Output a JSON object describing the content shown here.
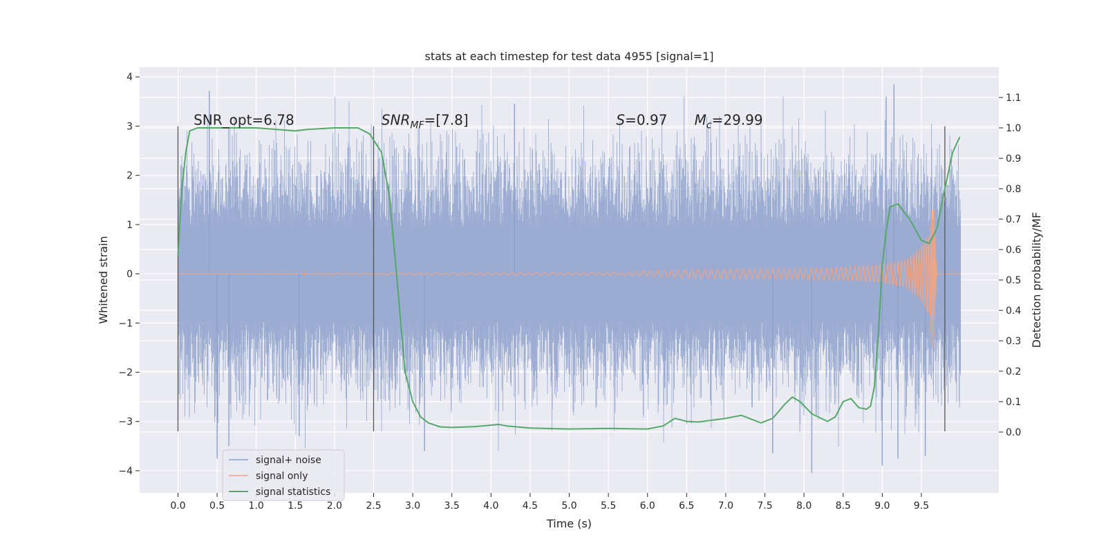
{
  "chart_data": {
    "type": "line",
    "title": "stats at each timestep for test data 4955 [signal=1]",
    "xlabel": "Time (s)",
    "ylabel": "Whitened strain",
    "y2label": "Detection probability/MF",
    "xlim": [
      -0.49,
      10.49
    ],
    "ylim": [
      -4.45,
      4.2
    ],
    "y2lim": [
      -0.2,
      1.2
    ],
    "xticks": [
      0.0,
      0.5,
      1.0,
      1.5,
      2.0,
      2.5,
      3.0,
      3.5,
      4.0,
      4.5,
      5.0,
      5.5,
      6.0,
      6.5,
      7.0,
      7.5,
      8.0,
      8.5,
      9.0,
      9.5
    ],
    "xtick_labels": [
      "0.0",
      "0.5",
      "1.0",
      "1.5",
      "2.0",
      "2.5",
      "3.0",
      "3.5",
      "4.0",
      "4.5",
      "5.0",
      "5.5",
      "6.0",
      "6.5",
      "7.0",
      "7.5",
      "8.0",
      "8.5",
      "9.0",
      "9.5"
    ],
    "yticks": [
      4,
      3,
      2,
      1,
      0,
      -1,
      -2,
      -3,
      -4
    ],
    "ytick_labels": [
      "4",
      "3",
      "2",
      "1",
      "0",
      "−1",
      "−2",
      "−3",
      "−4"
    ],
    "y2ticks": [
      1.1,
      1.0,
      0.9,
      0.8,
      0.7,
      0.6,
      0.5,
      0.4,
      0.3,
      0.2,
      0.1,
      0.0
    ],
    "y2tick_labels": [
      "1.1",
      "1.0",
      "0.9",
      "0.8",
      "0.7",
      "0.6",
      "0.5",
      "0.4",
      "0.3",
      "0.2",
      "0.1",
      "0.0"
    ],
    "grid": true,
    "vlines": [
      {
        "x": 0.0,
        "ymin": -3.2,
        "ymax": 3.0
      },
      {
        "x": 2.5,
        "ymin": -3.2,
        "ymax": 3.0
      },
      {
        "x": 9.8,
        "ymin": -3.2,
        "ymax": 3.0
      }
    ],
    "annotations": [
      {
        "x": 0.2,
        "y": 3.03,
        "parts": [
          {
            "t": "SNR_opt=6.78",
            "s": "n"
          }
        ]
      },
      {
        "x": 2.6,
        "y": 3.03,
        "parts": [
          {
            "t": "SNR",
            "s": "i"
          },
          {
            "t": "MF",
            "s": "isub"
          },
          {
            "t": "=[7.8]",
            "s": "n"
          }
        ]
      },
      {
        "x": 5.6,
        "y": 3.03,
        "parts": [
          {
            "t": "S",
            "s": "i"
          },
          {
            "t": "=0.97",
            "s": "n"
          }
        ]
      },
      {
        "x": 6.6,
        "y": 3.03,
        "parts": [
          {
            "t": "M",
            "s": "i"
          },
          {
            "t": "c",
            "s": "isub"
          },
          {
            "t": "=29.99",
            "s": "n"
          }
        ]
      }
    ],
    "legend": {
      "position": "lower-left",
      "entries": [
        {
          "label": "signal+ noise",
          "color": "#8da0cb"
        },
        {
          "label": "signal only",
          "color": "#f0a585"
        },
        {
          "label": "signal statistics",
          "color": "#55a868"
        }
      ]
    },
    "series": [
      {
        "name": "signal+ noise",
        "color": "#8da0cb",
        "axis": "left",
        "x_range": [
          0.0,
          10.0
        ],
        "typical_amplitude": 1.6,
        "peak_values": [
          {
            "x": 0.4,
            "y": 3.72
          },
          {
            "x": 0.5,
            "y": -3.75
          },
          {
            "x": 0.65,
            "y": -3.5
          },
          {
            "x": 1.55,
            "y": -3.3
          },
          {
            "x": 3.15,
            "y": -3.6
          },
          {
            "x": 4.3,
            "y": 3.45
          },
          {
            "x": 7.6,
            "y": -3.65
          },
          {
            "x": 8.1,
            "y": -4.05
          },
          {
            "x": 9.05,
            "y": 3.6
          },
          {
            "x": 9.0,
            "y": -3.9
          },
          {
            "x": 9.15,
            "y": 3.85
          },
          {
            "x": 9.2,
            "y": -3.75
          },
          {
            "x": 9.55,
            "y": -3.7
          }
        ]
      },
      {
        "name": "signal only",
        "color": "#f0a585",
        "axis": "left",
        "x": [
          0.0,
          5.5,
          6.5,
          7.5,
          8.5,
          9.0,
          9.3,
          9.5,
          9.6,
          9.65,
          9.7,
          9.75,
          10.0
        ],
        "envelope": [
          0.0,
          0.03,
          0.08,
          0.1,
          0.13,
          0.18,
          0.28,
          0.55,
          0.85,
          1.55,
          0.0,
          0.0,
          0.0
        ]
      },
      {
        "name": "signal statistics",
        "color": "#55a868",
        "axis": "right",
        "x": [
          0.0,
          0.05,
          0.1,
          0.15,
          0.25,
          0.5,
          1.0,
          1.5,
          1.65,
          2.0,
          2.3,
          2.45,
          2.6,
          2.7,
          2.8,
          2.9,
          3.0,
          3.1,
          3.2,
          3.35,
          3.5,
          3.8,
          4.1,
          4.2,
          4.5,
          5.0,
          5.5,
          6.0,
          6.2,
          6.35,
          6.5,
          6.65,
          7.0,
          7.2,
          7.45,
          7.6,
          7.75,
          7.85,
          7.95,
          8.1,
          8.3,
          8.4,
          8.5,
          8.6,
          8.7,
          8.8,
          8.85,
          8.9,
          8.95,
          9.0,
          9.05,
          9.1,
          9.2,
          9.35,
          9.5,
          9.6,
          9.7,
          9.8,
          9.9,
          9.99
        ],
        "values": [
          0.58,
          0.8,
          0.92,
          0.99,
          1.0,
          1.0,
          1.0,
          0.99,
          0.995,
          1.0,
          1.0,
          0.98,
          0.92,
          0.78,
          0.5,
          0.2,
          0.1,
          0.05,
          0.03,
          0.017,
          0.015,
          0.018,
          0.025,
          0.02,
          0.013,
          0.01,
          0.012,
          0.01,
          0.02,
          0.045,
          0.035,
          0.033,
          0.045,
          0.055,
          0.03,
          0.045,
          0.09,
          0.115,
          0.1,
          0.06,
          0.035,
          0.05,
          0.1,
          0.11,
          0.08,
          0.075,
          0.085,
          0.15,
          0.32,
          0.55,
          0.66,
          0.74,
          0.75,
          0.7,
          0.63,
          0.62,
          0.67,
          0.8,
          0.92,
          0.97
        ]
      }
    ]
  }
}
